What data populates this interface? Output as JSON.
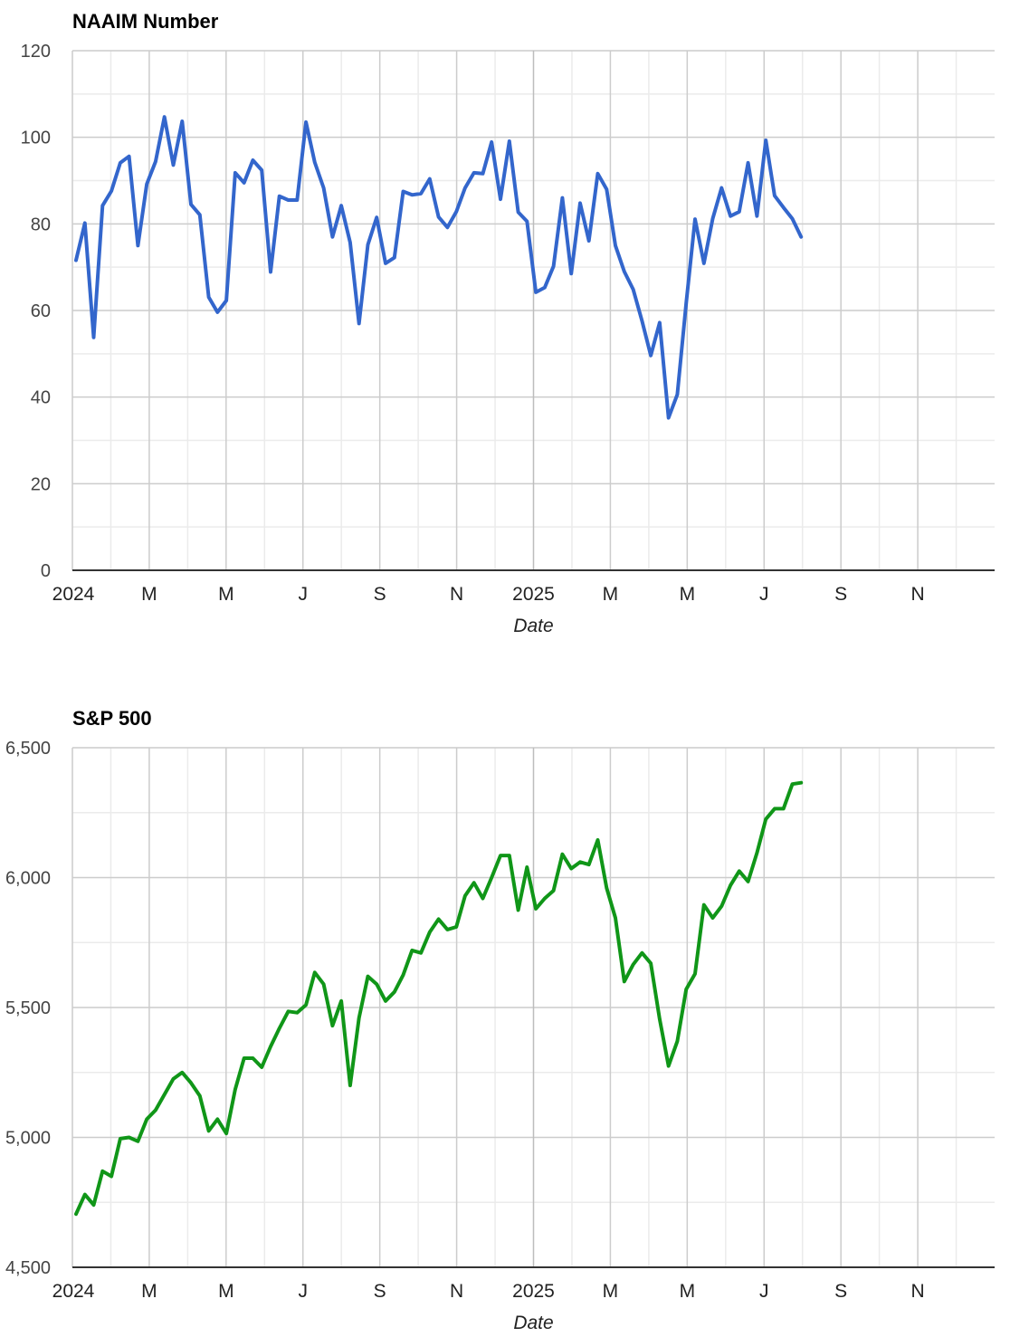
{
  "chart_data": [
    {
      "type": "line",
      "title": "NAAIM Number",
      "xlabel": "Date",
      "ylabel": "",
      "ylim": [
        0,
        120
      ],
      "yticks": [
        0,
        20,
        40,
        60,
        80,
        100,
        120
      ],
      "ytick_labels": [
        "0",
        "20",
        "40",
        "60",
        "80",
        "100",
        "120"
      ],
      "xlim": [
        "2024-01-01",
        "2025-12-31"
      ],
      "xtick_labels": [
        "2024",
        "M",
        "M",
        "J",
        "S",
        "N",
        "2025",
        "M",
        "M",
        "J",
        "S",
        "N"
      ],
      "grid": true,
      "color": "#3366cc",
      "series": [
        {
          "values": [
            71.6,
            80.2,
            53.8,
            84.2,
            87.6,
            94.1,
            95.6,
            75.0,
            89.2,
            94.4,
            104.7,
            93.6,
            103.7,
            84.5,
            82.1,
            63.1,
            59.6,
            62.3,
            91.8,
            89.5,
            94.7,
            92.4,
            68.9,
            86.4,
            85.5,
            85.5,
            103.5,
            94.2,
            88.3,
            77.0,
            84.2,
            75.7,
            57.0,
            75.2,
            81.5,
            70.9,
            72.2,
            87.5,
            86.7,
            87.0,
            90.4,
            81.6,
            79.2,
            82.8,
            88.3,
            91.8,
            91.6,
            98.9,
            85.7,
            99.1,
            82.7,
            80.6,
            64.2,
            65.3,
            70.2,
            86.0,
            68.5,
            84.8,
            76.1,
            91.6,
            88.0,
            75.0,
            69.0,
            64.9,
            57.6,
            49.6,
            57.2,
            35.2,
            40.6,
            61.7,
            81.1,
            70.9,
            81.2,
            88.3,
            81.8,
            82.8,
            94.1,
            81.8,
            99.3,
            86.5,
            83.8,
            81.2,
            77.0
          ]
        }
      ]
    },
    {
      "type": "line",
      "title": "S&P 500",
      "xlabel": "Date",
      "ylabel": "",
      "ylim": [
        4500,
        6500
      ],
      "yticks": [
        4500,
        5000,
        5500,
        6000,
        6500
      ],
      "ytick_labels": [
        "4,500",
        "5,000",
        "5,500",
        "6,000",
        "6,500"
      ],
      "xlim": [
        "2024-01-01",
        "2025-12-31"
      ],
      "xtick_labels": [
        "2024",
        "M",
        "M",
        "J",
        "S",
        "N",
        "2025",
        "M",
        "M",
        "J",
        "S",
        "N"
      ],
      "grid": true,
      "color": "#109618",
      "series": [
        {
          "values": [
            4705,
            4780,
            4740,
            4870,
            4850,
            4995,
            5000,
            4985,
            5070,
            5105,
            5165,
            5225,
            5250,
            5210,
            5160,
            5025,
            5070,
            5015,
            5185,
            5305,
            5305,
            5270,
            5350,
            5420,
            5485,
            5480,
            5510,
            5635,
            5590,
            5430,
            5525,
            5200,
            5460,
            5620,
            5590,
            5525,
            5560,
            5625,
            5720,
            5710,
            5790,
            5840,
            5800,
            5810,
            5930,
            5980,
            5920,
            6000,
            6085,
            6085,
            5875,
            6040,
            5880,
            5920,
            5950,
            6090,
            6035,
            6060,
            6050,
            6145,
            5960,
            5845,
            5600,
            5665,
            5710,
            5670,
            5455,
            5275,
            5370,
            5570,
            5630,
            5895,
            5845,
            5890,
            5970,
            6025,
            5985,
            6095,
            6225,
            6265,
            6265,
            6360,
            6365
          ]
        }
      ]
    }
  ]
}
